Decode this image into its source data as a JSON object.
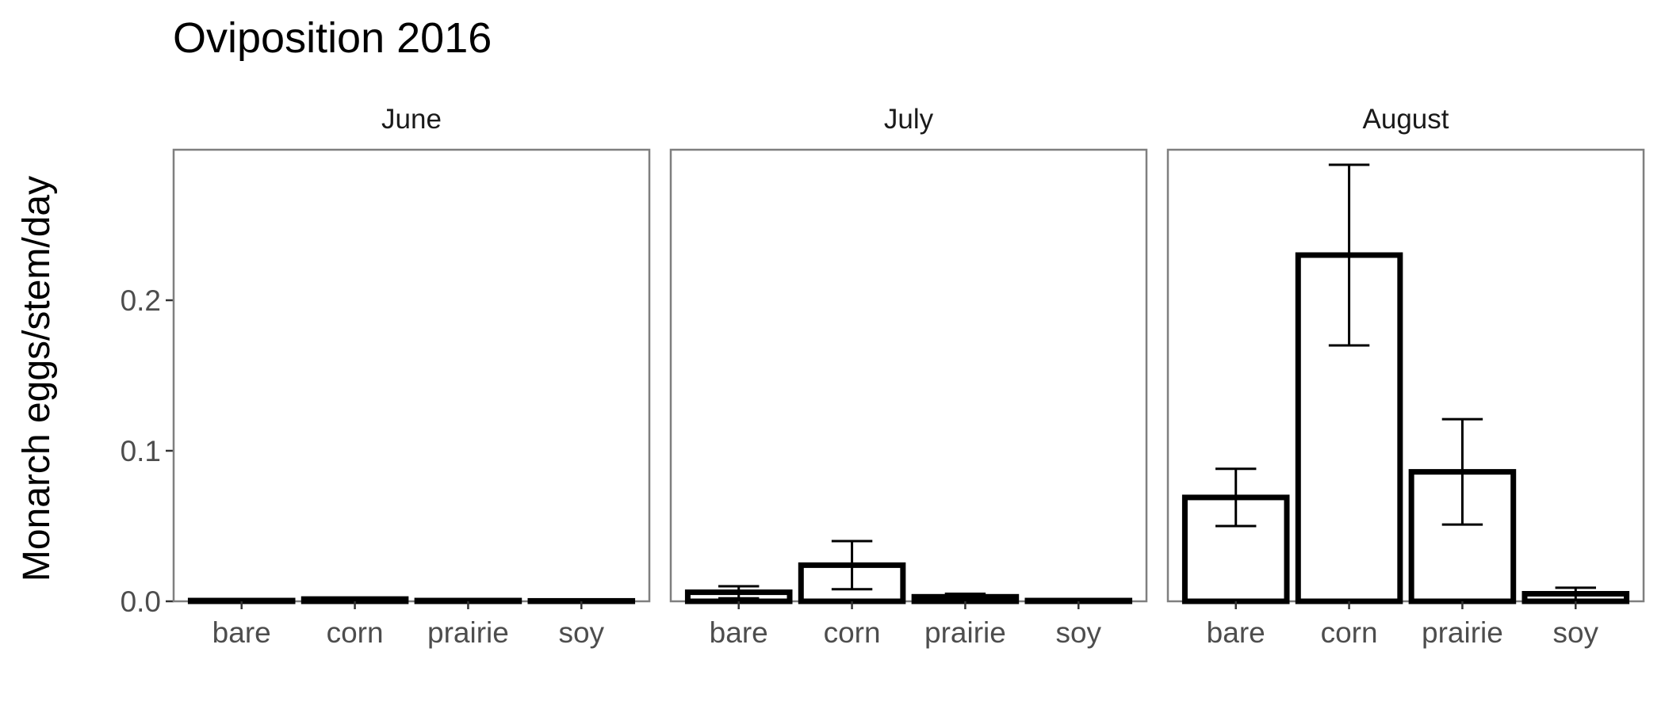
{
  "chart_data": {
    "type": "bar",
    "title": "Oviposition 2016",
    "ylabel": "Monarch eggs/stem/day",
    "xlabel": "",
    "ylim": [
      0,
      0.3
    ],
    "yticks": [
      0.0,
      0.1,
      0.2
    ],
    "ytick_labels": [
      "0.0",
      "0.1",
      "0.2"
    ],
    "categories": [
      "bare",
      "corn",
      "prairie",
      "soy"
    ],
    "grid": false,
    "legend": "none",
    "bar_fill": "#ffffff",
    "bar_outline": "#000000",
    "panels": [
      {
        "name": "June",
        "values": [
          0.0005,
          0.0015,
          0.0005,
          0.0003
        ],
        "err_low": [
          0.0002,
          0.0008,
          0.0002,
          0.0001
        ],
        "err_high": [
          0.0008,
          0.0022,
          0.0008,
          0.0005
        ]
      },
      {
        "name": "July",
        "values": [
          0.006,
          0.024,
          0.003,
          0.0005
        ],
        "err_low": [
          0.002,
          0.008,
          0.001,
          0.0002
        ],
        "err_high": [
          0.01,
          0.04,
          0.005,
          0.0008
        ]
      },
      {
        "name": "August",
        "values": [
          0.069,
          0.23,
          0.086,
          0.005
        ],
        "err_low": [
          0.05,
          0.17,
          0.051,
          0.001
        ],
        "err_high": [
          0.088,
          0.29,
          0.121,
          0.009
        ]
      }
    ]
  }
}
